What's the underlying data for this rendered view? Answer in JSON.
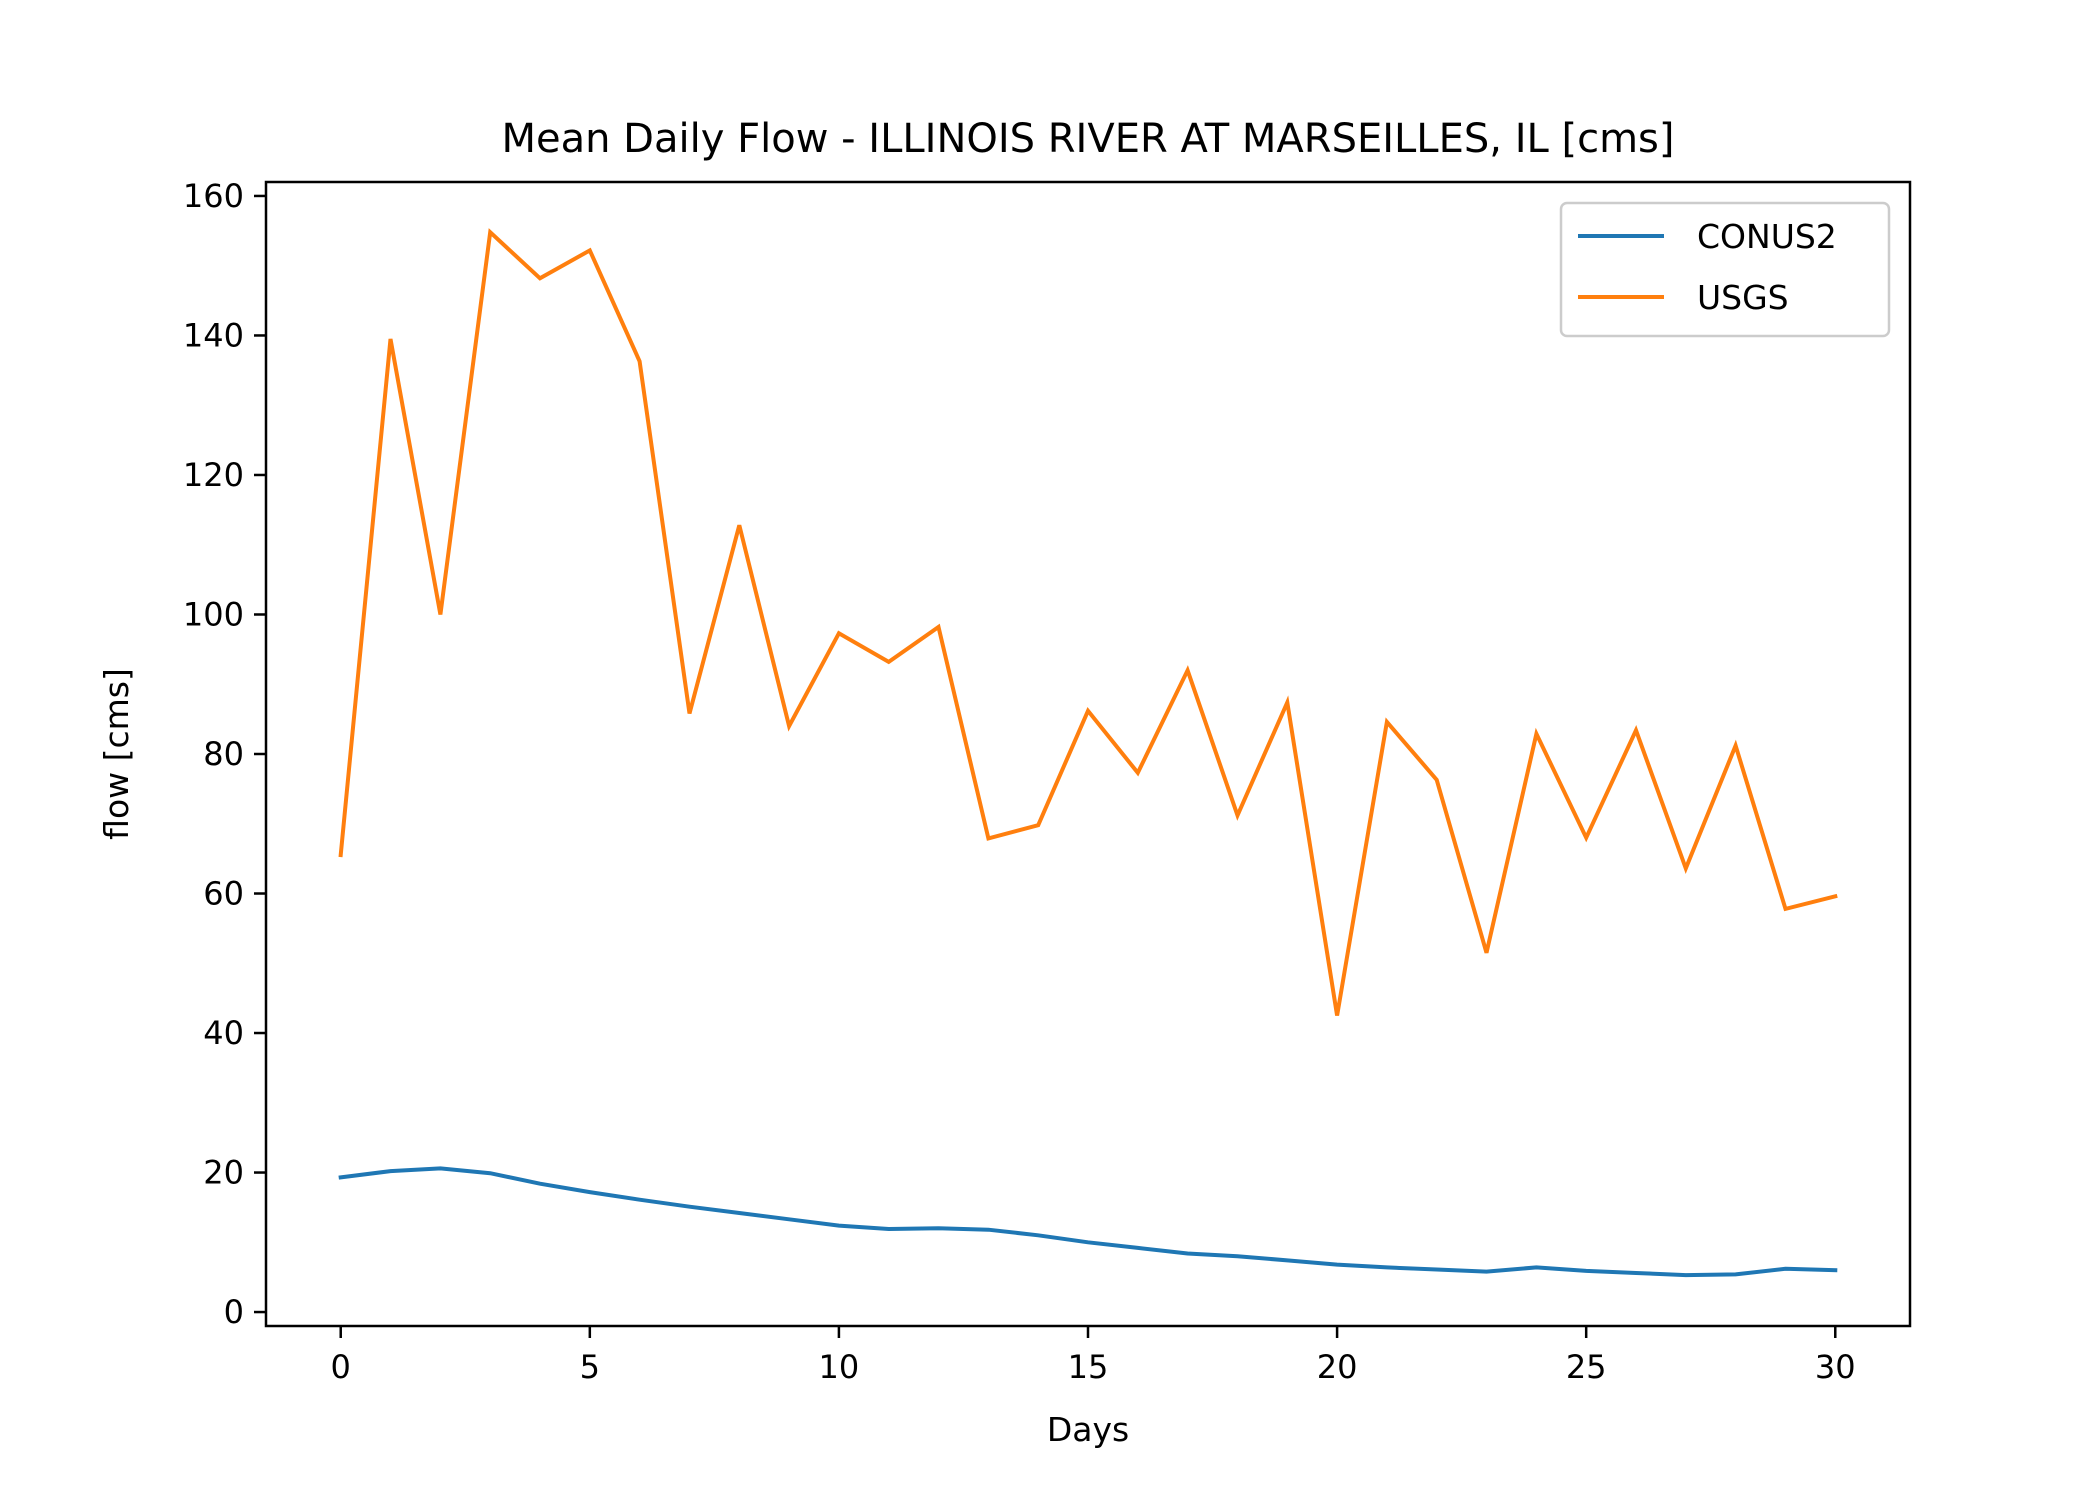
{
  "chart_data": {
    "type": "line",
    "title": "Mean Daily Flow - ILLINOIS RIVER AT MARSEILLES, IL [cms]",
    "xlabel": "Days",
    "ylabel": "flow [cms]",
    "xlim": [
      -1.5,
      31.5
    ],
    "ylim": [
      -2,
      162
    ],
    "xticks": [
      0,
      5,
      10,
      15,
      20,
      25,
      30
    ],
    "yticks": [
      0,
      20,
      40,
      60,
      80,
      100,
      120,
      140,
      160
    ],
    "grid": false,
    "legend": "top-right",
    "x": [
      0,
      1,
      2,
      3,
      4,
      5,
      6,
      7,
      8,
      9,
      10,
      11,
      12,
      13,
      14,
      15,
      16,
      17,
      18,
      19,
      20,
      21,
      22,
      23,
      24,
      25,
      26,
      27,
      28,
      29,
      30
    ],
    "series": [
      {
        "name": "CONUS2",
        "color": "#1f77b4",
        "values": [
          19.3,
          20.2,
          20.6,
          19.9,
          18.4,
          17.2,
          16.1,
          15.1,
          14.2,
          13.3,
          12.4,
          11.9,
          12.0,
          11.8,
          11.0,
          10.0,
          9.2,
          8.4,
          8.0,
          7.4,
          6.8,
          6.4,
          6.1,
          5.8,
          6.4,
          5.9,
          5.6,
          5.3,
          5.4,
          6.2,
          6.0
        ]
      },
      {
        "name": "USGS",
        "color": "#ff7f0e",
        "values": [
          65.5,
          139.5,
          100.0,
          154.8,
          148.2,
          152.2,
          136.3,
          85.8,
          112.8,
          84.0,
          97.3,
          93.2,
          98.2,
          67.9,
          69.8,
          86.2,
          77.3,
          92.0,
          71.2,
          87.4,
          42.5,
          84.6,
          76.3,
          51.5,
          82.9,
          68.0,
          83.4,
          63.6,
          81.2,
          57.8,
          59.6
        ]
      }
    ]
  }
}
